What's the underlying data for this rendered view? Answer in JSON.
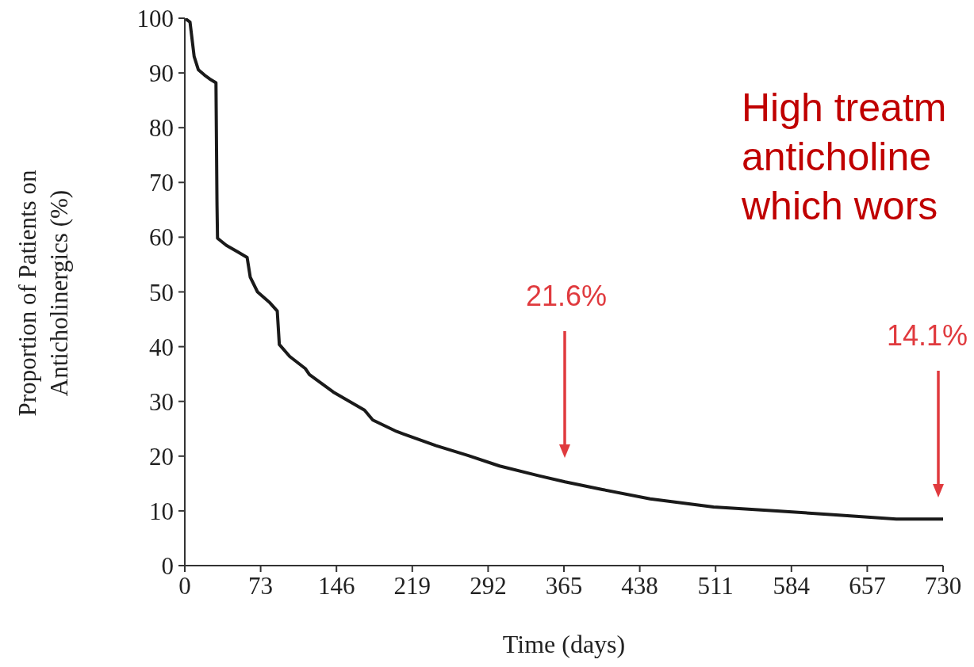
{
  "chart_data": {
    "type": "line",
    "ylabel": "Proportion of Patients on Anticholinergics (%)",
    "xlabel": "Time (days)",
    "x": [
      0,
      5,
      9,
      13,
      19,
      24,
      30,
      31,
      31.5,
      40,
      51,
      60,
      63,
      70,
      82,
      89,
      91,
      101,
      116,
      120,
      143,
      173,
      181,
      204,
      242,
      273,
      303,
      341,
      366,
      402,
      448,
      509,
      570,
      624,
      685,
      730
    ],
    "series": [
      {
        "color": "#1a1a1a",
        "values": [
          100,
          99.3,
          93,
          90.6,
          89.6,
          88.9,
          88.2,
          66,
          59.8,
          58.5,
          57.3,
          56.3,
          52.7,
          50,
          48,
          46.5,
          40.4,
          38.2,
          36,
          34.9,
          31.7,
          28.4,
          26.6,
          24.5,
          21.9,
          20.1,
          18.2,
          16.4,
          15.3,
          13.9,
          12.2,
          10.7,
          10,
          9.3,
          8.5,
          8.5
        ]
      }
    ],
    "xlim": [
      0,
      730
    ],
    "xticks": [
      0,
      73,
      146,
      219,
      292,
      365,
      438,
      511,
      584,
      657,
      730
    ],
    "ylim": [
      0,
      100
    ],
    "yticks": [
      0,
      10,
      20,
      30,
      40,
      50,
      60,
      70,
      80,
      90,
      100
    ],
    "marker": "none",
    "line_style": "solid",
    "annotations": [
      "High treatm",
      "anticholine",
      "which wors",
      "21.6%",
      "14.1%"
    ]
  }
}
